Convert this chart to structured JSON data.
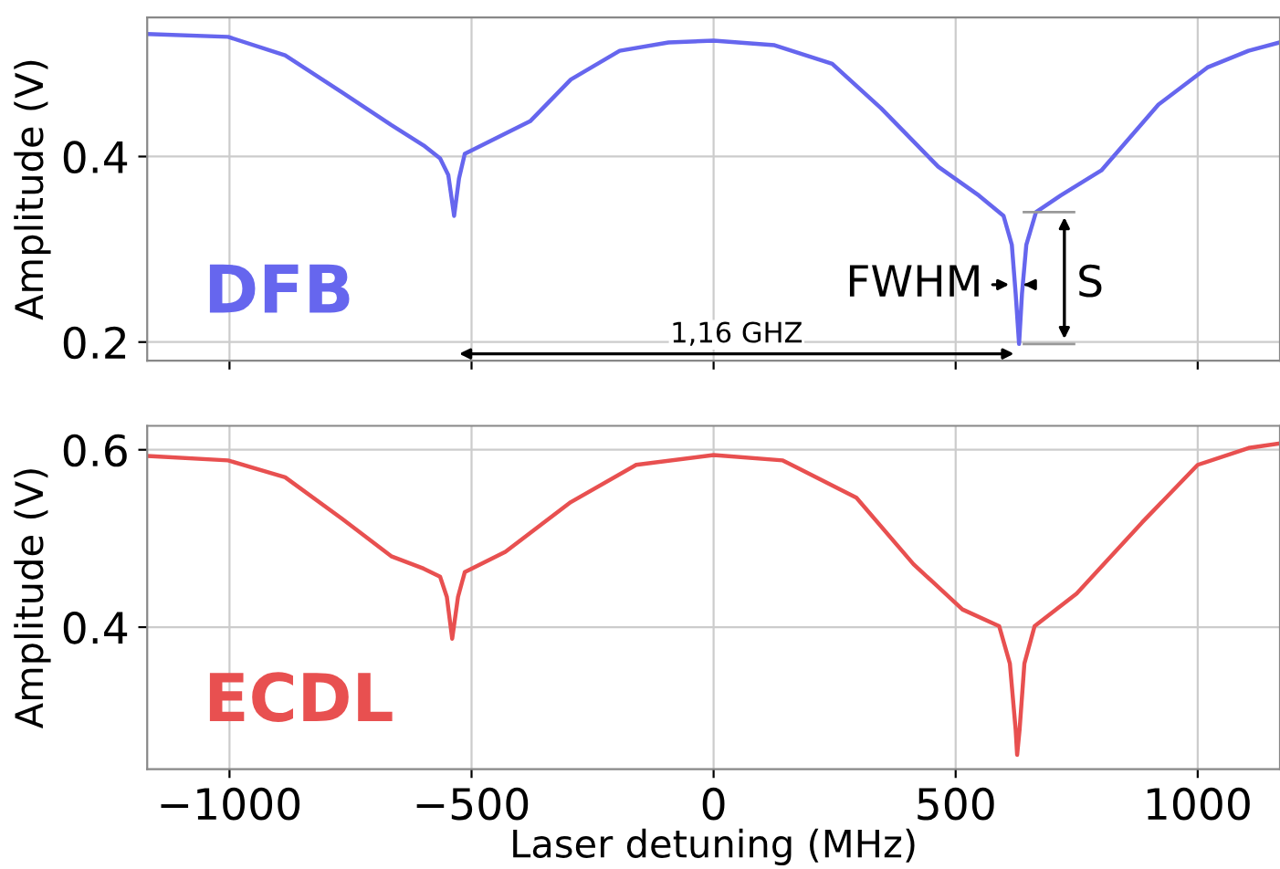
{
  "chart_data": [
    {
      "type": "line",
      "ylabel": "Amplitude (V)",
      "xlim": [
        -1170,
        1170
      ],
      "ylim": [
        0.18,
        0.55
      ],
      "xticks": [
        {
          "value": -1000,
          "label": null
        },
        {
          "value": -500,
          "label": null
        },
        {
          "value": 0,
          "label": null
        },
        {
          "value": 500,
          "label": null
        },
        {
          "value": 1000,
          "label": null
        }
      ],
      "yticks": [
        0.2,
        0.4
      ],
      "tick_labels": "y",
      "grid": true,
      "series": [
        {
          "name": "DFB",
          "color": "#6666ee",
          "x": [
            -1170,
            -1003,
            -885,
            -767,
            -666,
            -599,
            -565,
            -548,
            -536,
            -526,
            -514,
            -464,
            -379,
            -295,
            -194,
            -93,
            0,
            126,
            245,
            346,
            464,
            548,
            599,
            616,
            624,
            631,
            637,
            646,
            666,
            717,
            801,
            919,
            1020,
            1105,
            1169
          ],
          "values": [
            0.532,
            0.529,
            0.509,
            0.469,
            0.434,
            0.412,
            0.398,
            0.38,
            0.336,
            0.376,
            0.403,
            0.416,
            0.438,
            0.483,
            0.514,
            0.523,
            0.525,
            0.52,
            0.5,
            0.452,
            0.389,
            0.358,
            0.336,
            0.305,
            0.252,
            0.198,
            0.252,
            0.305,
            0.34,
            0.358,
            0.385,
            0.456,
            0.496,
            0.514,
            0.523
          ]
        }
      ],
      "annotations": [
        "1,16 GHZ",
        "FWHM",
        {
          "text": "S",
          "x": 631,
          "y": 0.198
        }
      ]
    },
    {
      "type": "line",
      "xlabel": "Laser detuning (MHz)",
      "ylabel": "Amplitude (V)",
      "xlim": [
        -1170,
        1170
      ],
      "ylim": [
        0.24,
        0.627
      ],
      "xticks": [
        {
          "value": -1000,
          "label": "−1000"
        },
        {
          "value": -500,
          "label": "−500"
        },
        0,
        500,
        1000
      ],
      "yticks": [
        0.4,
        0.6
      ],
      "grid": true,
      "series": [
        {
          "name": "ECDL",
          "color": "#e85050",
          "x": [
            -1170,
            -1003,
            -885,
            -767,
            -666,
            -599,
            -565,
            -551,
            -540,
            -528,
            -514,
            -430,
            -295,
            -160,
            0,
            143,
            295,
            413,
            514,
            590,
            612,
            624,
            627,
            632,
            642,
            663,
            750,
            885,
            1000,
            1105,
            1169
          ],
          "values": [
            0.593,
            0.588,
            0.569,
            0.522,
            0.48,
            0.466,
            0.457,
            0.434,
            0.387,
            0.434,
            0.462,
            0.485,
            0.541,
            0.583,
            0.594,
            0.588,
            0.546,
            0.471,
            0.42,
            0.401,
            0.359,
            0.284,
            0.256,
            0.284,
            0.359,
            0.401,
            0.438,
            0.518,
            0.583,
            0.602,
            0.607
          ]
        }
      ]
    }
  ]
}
